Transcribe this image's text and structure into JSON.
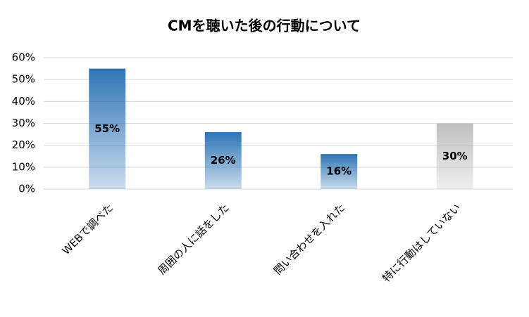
{
  "chart_data": {
    "type": "bar",
    "title": "CMを聴いた後の行動について",
    "categories": [
      "WEBで調べた",
      "周囲の人に話をした",
      "問い合わせを入れた",
      "特に行動はしていない"
    ],
    "values": [
      55,
      26,
      16,
      30
    ],
    "value_labels": [
      "55%",
      "26%",
      "16%",
      "30%"
    ],
    "colors": [
      "#2e75b6",
      "#2e75b6",
      "#2e75b6",
      "#bfbfbf"
    ],
    "ylim": [
      0,
      60
    ],
    "yticks": [
      {
        "value": 0,
        "label": "0%"
      },
      {
        "value": 10,
        "label": "10%"
      },
      {
        "value": 20,
        "label": "20%"
      },
      {
        "value": 30,
        "label": "30%"
      },
      {
        "value": 40,
        "label": "40%"
      },
      {
        "value": 50,
        "label": "50%"
      },
      {
        "value": 60,
        "label": "60%"
      }
    ],
    "grid": true
  }
}
